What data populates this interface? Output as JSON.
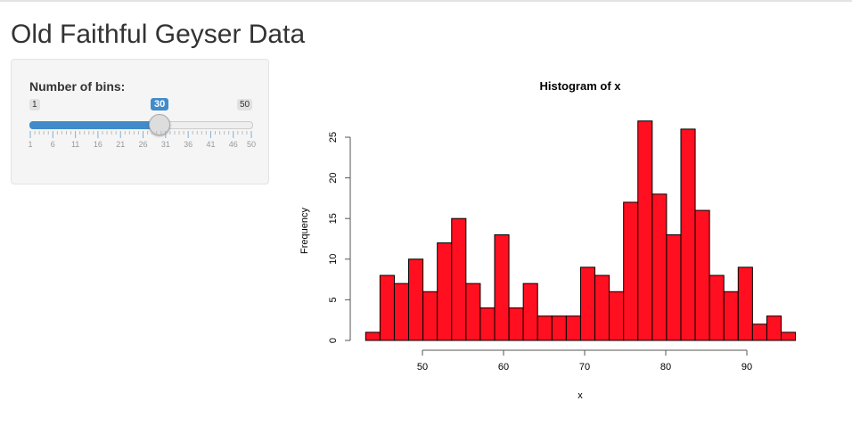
{
  "page": {
    "title": "Old Faithful Geyser Data"
  },
  "sidebar": {
    "slider_label": "Number of bins:",
    "min": "1",
    "max": "50",
    "value": "30",
    "value_num": 30,
    "tick_labels": [
      "1",
      "6",
      "11",
      "16",
      "21",
      "26",
      "31",
      "36",
      "41",
      "46",
      "50"
    ],
    "accent": "#428bca"
  },
  "chart_data": {
    "type": "bar",
    "title": "Histogram of x",
    "xlabel": "x",
    "ylabel": "Frequency",
    "breaks_start": 43,
    "breaks_end": 96,
    "bins": 30,
    "values": [
      1,
      8,
      7,
      10,
      6,
      12,
      15,
      7,
      4,
      13,
      4,
      7,
      3,
      3,
      3,
      9,
      8,
      6,
      17,
      27,
      18,
      13,
      26,
      16,
      8,
      6,
      9,
      2,
      3,
      1
    ],
    "xticks": [
      50,
      60,
      70,
      80,
      90
    ],
    "yticks": [
      0,
      5,
      10,
      15,
      20,
      25
    ],
    "bar_color": "#ff0f1f",
    "grid": false
  }
}
